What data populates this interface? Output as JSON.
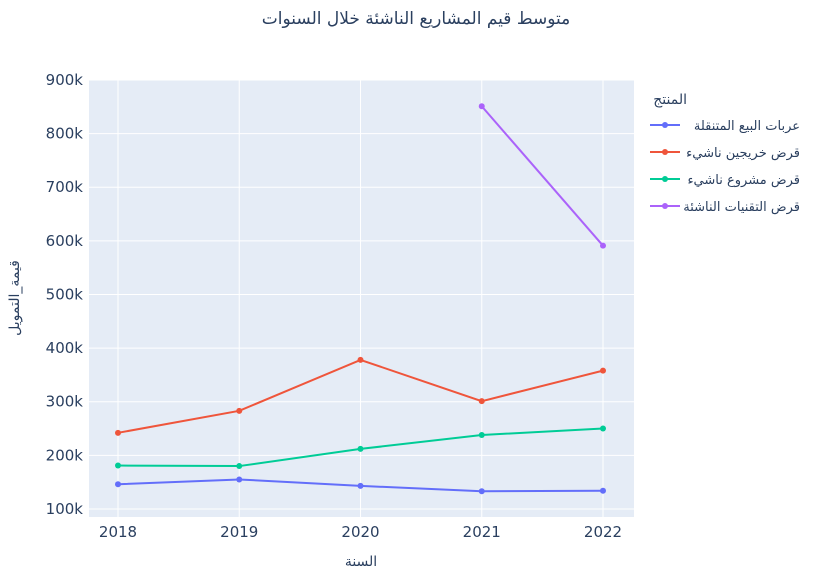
{
  "chart_data": {
    "type": "line",
    "title": "متوسط قيم المشاريع الناشئة خلال السنوات",
    "xlabel": "السنة",
    "ylabel": "قيمة_التمويل",
    "x": [
      "2018",
      "2019",
      "2020",
      "2021",
      "2022"
    ],
    "y_ticks": [
      "100k",
      "200k",
      "300k",
      "400k",
      "500k",
      "600k",
      "700k",
      "800k",
      "900k"
    ],
    "ylim": [
      85000,
      900000
    ],
    "grid": true,
    "legend": {
      "title": "المنتج",
      "placement": "right"
    },
    "series": [
      {
        "name": "عربات البيع المتنقلة",
        "color": "#636efa",
        "values": [
          146000,
          155000,
          143000,
          133000,
          134000
        ]
      },
      {
        "name": "قرض خريجين ناشيء",
        "color": "#ef553b",
        "values": [
          242000,
          283000,
          378000,
          301000,
          358000
        ]
      },
      {
        "name": "قرض مشروع ناشيء",
        "color": "#00cc96",
        "values": [
          181000,
          180000,
          212000,
          238000,
          250000
        ]
      },
      {
        "name": "قرض التقنيات الناشئة",
        "color": "#ab63fa",
        "values": [
          null,
          null,
          null,
          851000,
          591000
        ]
      }
    ]
  }
}
